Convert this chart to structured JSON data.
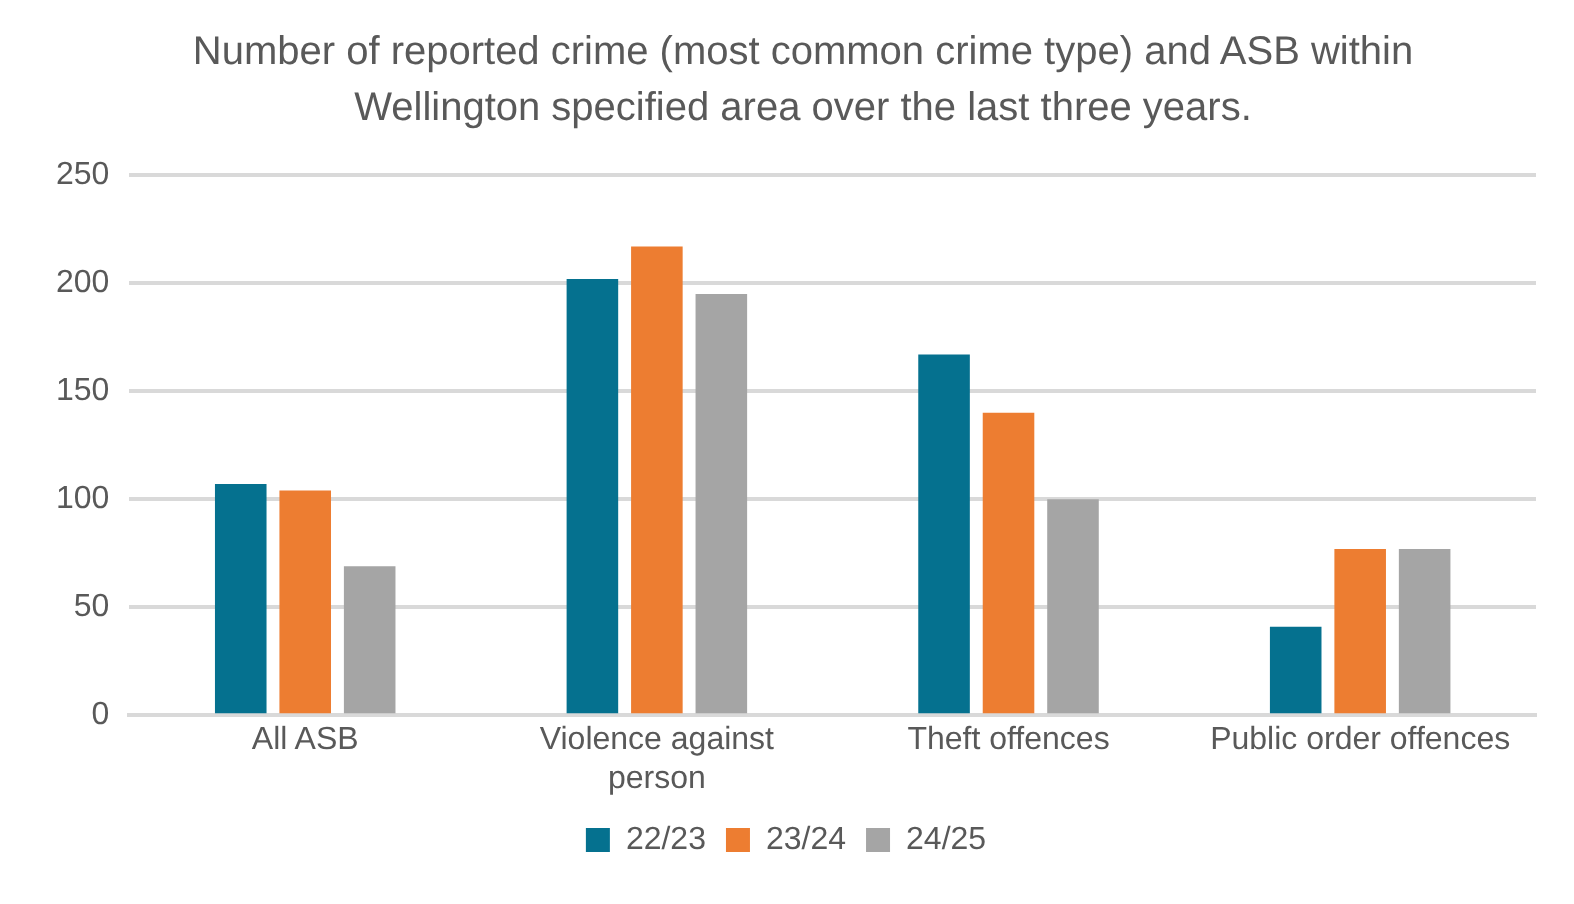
{
  "chart_data": {
    "type": "bar",
    "title": "Number of reported crime (most common crime type) and ASB within Wellington specified area over the last three years.",
    "categories": [
      "All ASB",
      "Violence against person",
      "Theft offences",
      "Public order offences"
    ],
    "series": [
      {
        "name": "22/23",
        "color": "#05718f",
        "values": [
          107,
          202,
          167,
          41
        ]
      },
      {
        "name": "23/24",
        "color": "#ed7d31",
        "values": [
          104,
          217,
          140,
          77
        ]
      },
      {
        "name": "24/25",
        "color": "#a5a5a5",
        "values": [
          69,
          195,
          100,
          77
        ]
      }
    ],
    "ylim": [
      0,
      250
    ],
    "yticks": [
      0,
      50,
      100,
      150,
      200,
      250
    ],
    "grid": "y",
    "legend": "bottom"
  }
}
